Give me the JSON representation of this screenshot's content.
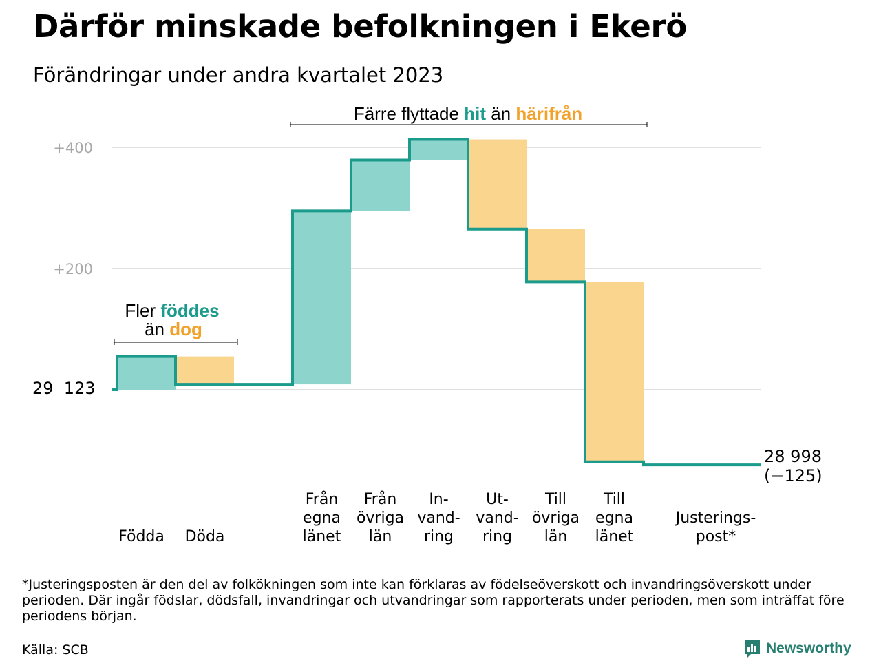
{
  "header": {
    "title": "Därför minskade befolkningen i Ekerö",
    "subtitle": "Förändringar under andra kvartalet 2023"
  },
  "colors": {
    "increase": "#8dd5cc",
    "decrease": "#fad58e",
    "line": "#1a9b8c",
    "grid": "#e0e0e0"
  },
  "annotations": {
    "births_deaths": {
      "line1_a": "Fler ",
      "line1_b": "föddes",
      "line2_a": "än ",
      "line2_b": "dog"
    },
    "migration": {
      "part1": "Färre flyttade ",
      "part2": "hit",
      "part3": " än ",
      "part4": "härifrån"
    }
  },
  "end_label": {
    "value": "28 998",
    "change": "(−125)"
  },
  "start_label": "29  123",
  "footnote": "*Justeringsposten är den del av folkökningen som inte kan förklaras av födelseöverskott och invandringsöverskott under perioden. Där ingår födslar, dödsfall, invandringar och utvandringar som rapporterats under perioden, men som inträffat före periodens början.",
  "source": "Källa: SCB",
  "brand": {
    "name": "Newsworthy",
    "icon": "bar-chart-icon"
  },
  "chart_data": {
    "type": "waterfall",
    "start_value": 29123,
    "end_value": 28998,
    "net_change": -125,
    "yticks": [
      {
        "value": 200,
        "label": "+200"
      },
      {
        "value": 400,
        "label": "+400"
      }
    ],
    "ylim": [
      -125,
      425
    ],
    "steps": [
      {
        "lines": [
          "Födda"
        ],
        "change": 55
      },
      {
        "lines": [
          "Döda"
        ],
        "change": -46
      },
      {
        "lines": [],
        "change": 0
      },
      {
        "lines": [
          "Från",
          "egna",
          "länet"
        ],
        "change": 286
      },
      {
        "lines": [
          "Från",
          "övriga",
          "län"
        ],
        "change": 84
      },
      {
        "lines": [
          "In-",
          "vand-",
          "ring"
        ],
        "change": 34
      },
      {
        "lines": [
          "Ut-",
          "vand-",
          "ring"
        ],
        "change": -148
      },
      {
        "lines": [
          "Till",
          "övriga",
          "län"
        ],
        "change": -87
      },
      {
        "lines": [
          "Till",
          "egna",
          "länet"
        ],
        "change": -297
      },
      {
        "lines": [
          "Justerings-",
          "post*"
        ],
        "change": -5
      }
    ]
  }
}
